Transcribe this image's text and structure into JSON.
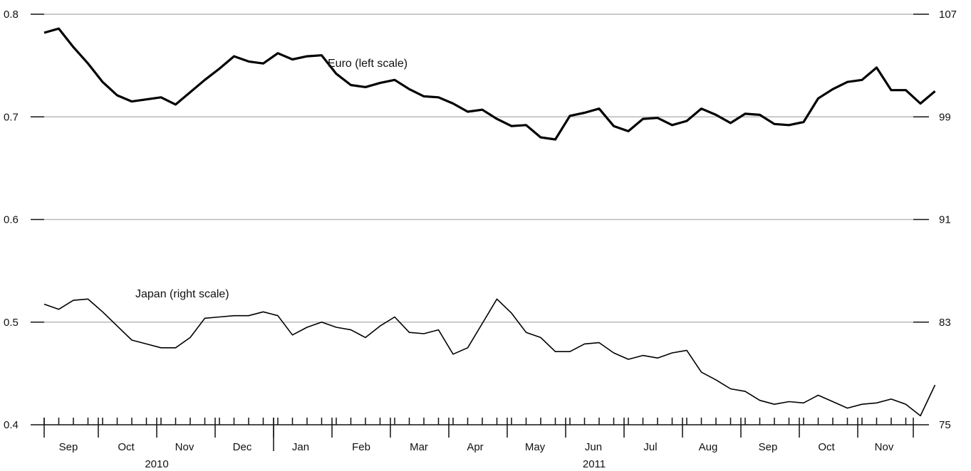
{
  "chart_data": {
    "type": "line",
    "x_unit": "week",
    "left_axis": {
      "ylim": [
        0.4,
        0.8
      ],
      "ticks": [
        "0.4",
        "0.5",
        "0.6",
        "0.7",
        "0.8"
      ]
    },
    "right_axis": {
      "ylim": [
        75,
        107
      ],
      "ticks": [
        "75",
        "83",
        "91",
        "99",
        "107"
      ]
    },
    "grid": true,
    "months": [
      "Sep",
      "Oct",
      "Nov",
      "Dec",
      "Jan",
      "Feb",
      "Mar",
      "Apr",
      "May",
      "Jun",
      "Jul",
      "Aug",
      "Sep",
      "Oct",
      "Nov"
    ],
    "years": [
      "2010",
      "2011"
    ],
    "series": [
      {
        "name": "Euro (left scale)",
        "axis": "left",
        "values": [
          0.782,
          0.786,
          0.768,
          0.752,
          0.734,
          0.721,
          0.715,
          0.717,
          0.719,
          0.712,
          0.724,
          0.736,
          0.747,
          0.759,
          0.754,
          0.752,
          0.762,
          0.756,
          0.759,
          0.76,
          0.742,
          0.731,
          0.729,
          0.733,
          0.736,
          0.727,
          0.72,
          0.719,
          0.713,
          0.705,
          0.707,
          0.698,
          0.691,
          0.692,
          0.68,
          0.678,
          0.701,
          0.704,
          0.708,
          0.691,
          0.686,
          0.698,
          0.699,
          0.692,
          0.696,
          0.708,
          0.702,
          0.694,
          0.703,
          0.702,
          0.693,
          0.692,
          0.695,
          0.718,
          0.727,
          0.734,
          0.736,
          0.748,
          0.726,
          0.726,
          0.713,
          0.725
        ]
      },
      {
        "name": "Japan (right scale)",
        "axis": "right",
        "values": [
          84.4,
          84.0,
          84.7,
          84.8,
          83.8,
          82.7,
          81.6,
          81.3,
          81.0,
          81.0,
          81.8,
          83.3,
          83.4,
          83.5,
          83.5,
          83.8,
          83.5,
          82.0,
          82.6,
          83.0,
          82.6,
          82.4,
          81.8,
          82.7,
          83.4,
          82.2,
          82.1,
          82.4,
          80.5,
          81.0,
          82.9,
          84.8,
          83.7,
          82.2,
          81.8,
          80.7,
          80.7,
          81.3,
          81.4,
          80.6,
          80.1,
          80.4,
          80.2,
          80.6,
          80.8,
          79.1,
          78.5,
          77.8,
          77.6,
          76.9,
          76.6,
          76.8,
          76.7,
          77.3,
          76.8,
          76.3,
          76.6,
          76.7,
          77.0,
          76.6,
          75.7,
          78.1
        ]
      }
    ]
  }
}
